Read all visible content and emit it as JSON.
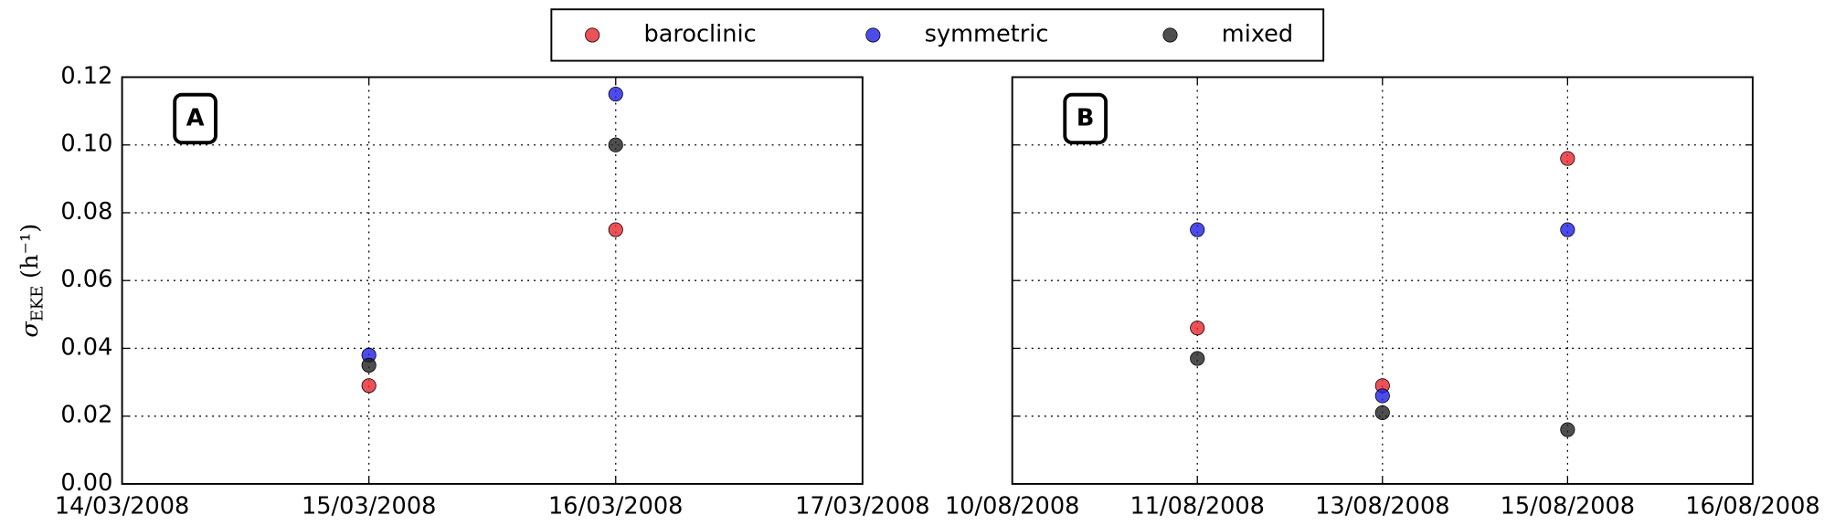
{
  "chart_data": [
    {
      "type": "scatter",
      "annotation": "A",
      "y_label": {
        "symbol": "σ",
        "subscript": "EKE",
        "unit": "(h⁻¹)"
      },
      "categories": [
        "14/03/2008",
        "15/03/2008",
        "16/03/2008",
        "17/03/2008"
      ],
      "series": [
        {
          "name": "baroclinic",
          "color": "#e8262e",
          "values": [
            null,
            0.029,
            0.075,
            null
          ]
        },
        {
          "name": "symmetric",
          "color": "#1f1fe6",
          "values": [
            null,
            0.038,
            0.115,
            null
          ]
        },
        {
          "name": "mixed",
          "color": "#222222",
          "values": [
            null,
            0.035,
            0.1,
            null
          ]
        }
      ],
      "ylim": [
        0,
        0.12
      ],
      "yticks": [
        {
          "value": 0,
          "label": "0.00"
        },
        {
          "value": 0.02,
          "label": "0.02"
        },
        {
          "value": 0.04,
          "label": "0.04"
        },
        {
          "value": 0.06,
          "label": "0.06"
        },
        {
          "value": 0.08,
          "label": "0.08"
        },
        {
          "value": 0.1,
          "label": "0.10"
        },
        {
          "value": 0.12,
          "label": "0.12"
        }
      ],
      "grid": true
    },
    {
      "type": "scatter",
      "annotation": "B",
      "categories": [
        "10/08/2008",
        "11/08/2008",
        "13/08/2008",
        "15/08/2008",
        "16/08/2008"
      ],
      "series": [
        {
          "name": "baroclinic",
          "color": "#e8262e",
          "values": [
            null,
            0.046,
            0.029,
            0.096,
            null
          ]
        },
        {
          "name": "symmetric",
          "color": "#1f1fe6",
          "values": [
            null,
            0.075,
            0.026,
            0.075,
            null
          ]
        },
        {
          "name": "mixed",
          "color": "#222222",
          "values": [
            null,
            0.037,
            0.021,
            0.016,
            null
          ]
        }
      ],
      "ylim": [
        0,
        0.12
      ],
      "yticks": [
        0,
        0.02,
        0.04,
        0.06,
        0.08,
        0.1,
        0.12
      ],
      "grid": true
    }
  ]
}
